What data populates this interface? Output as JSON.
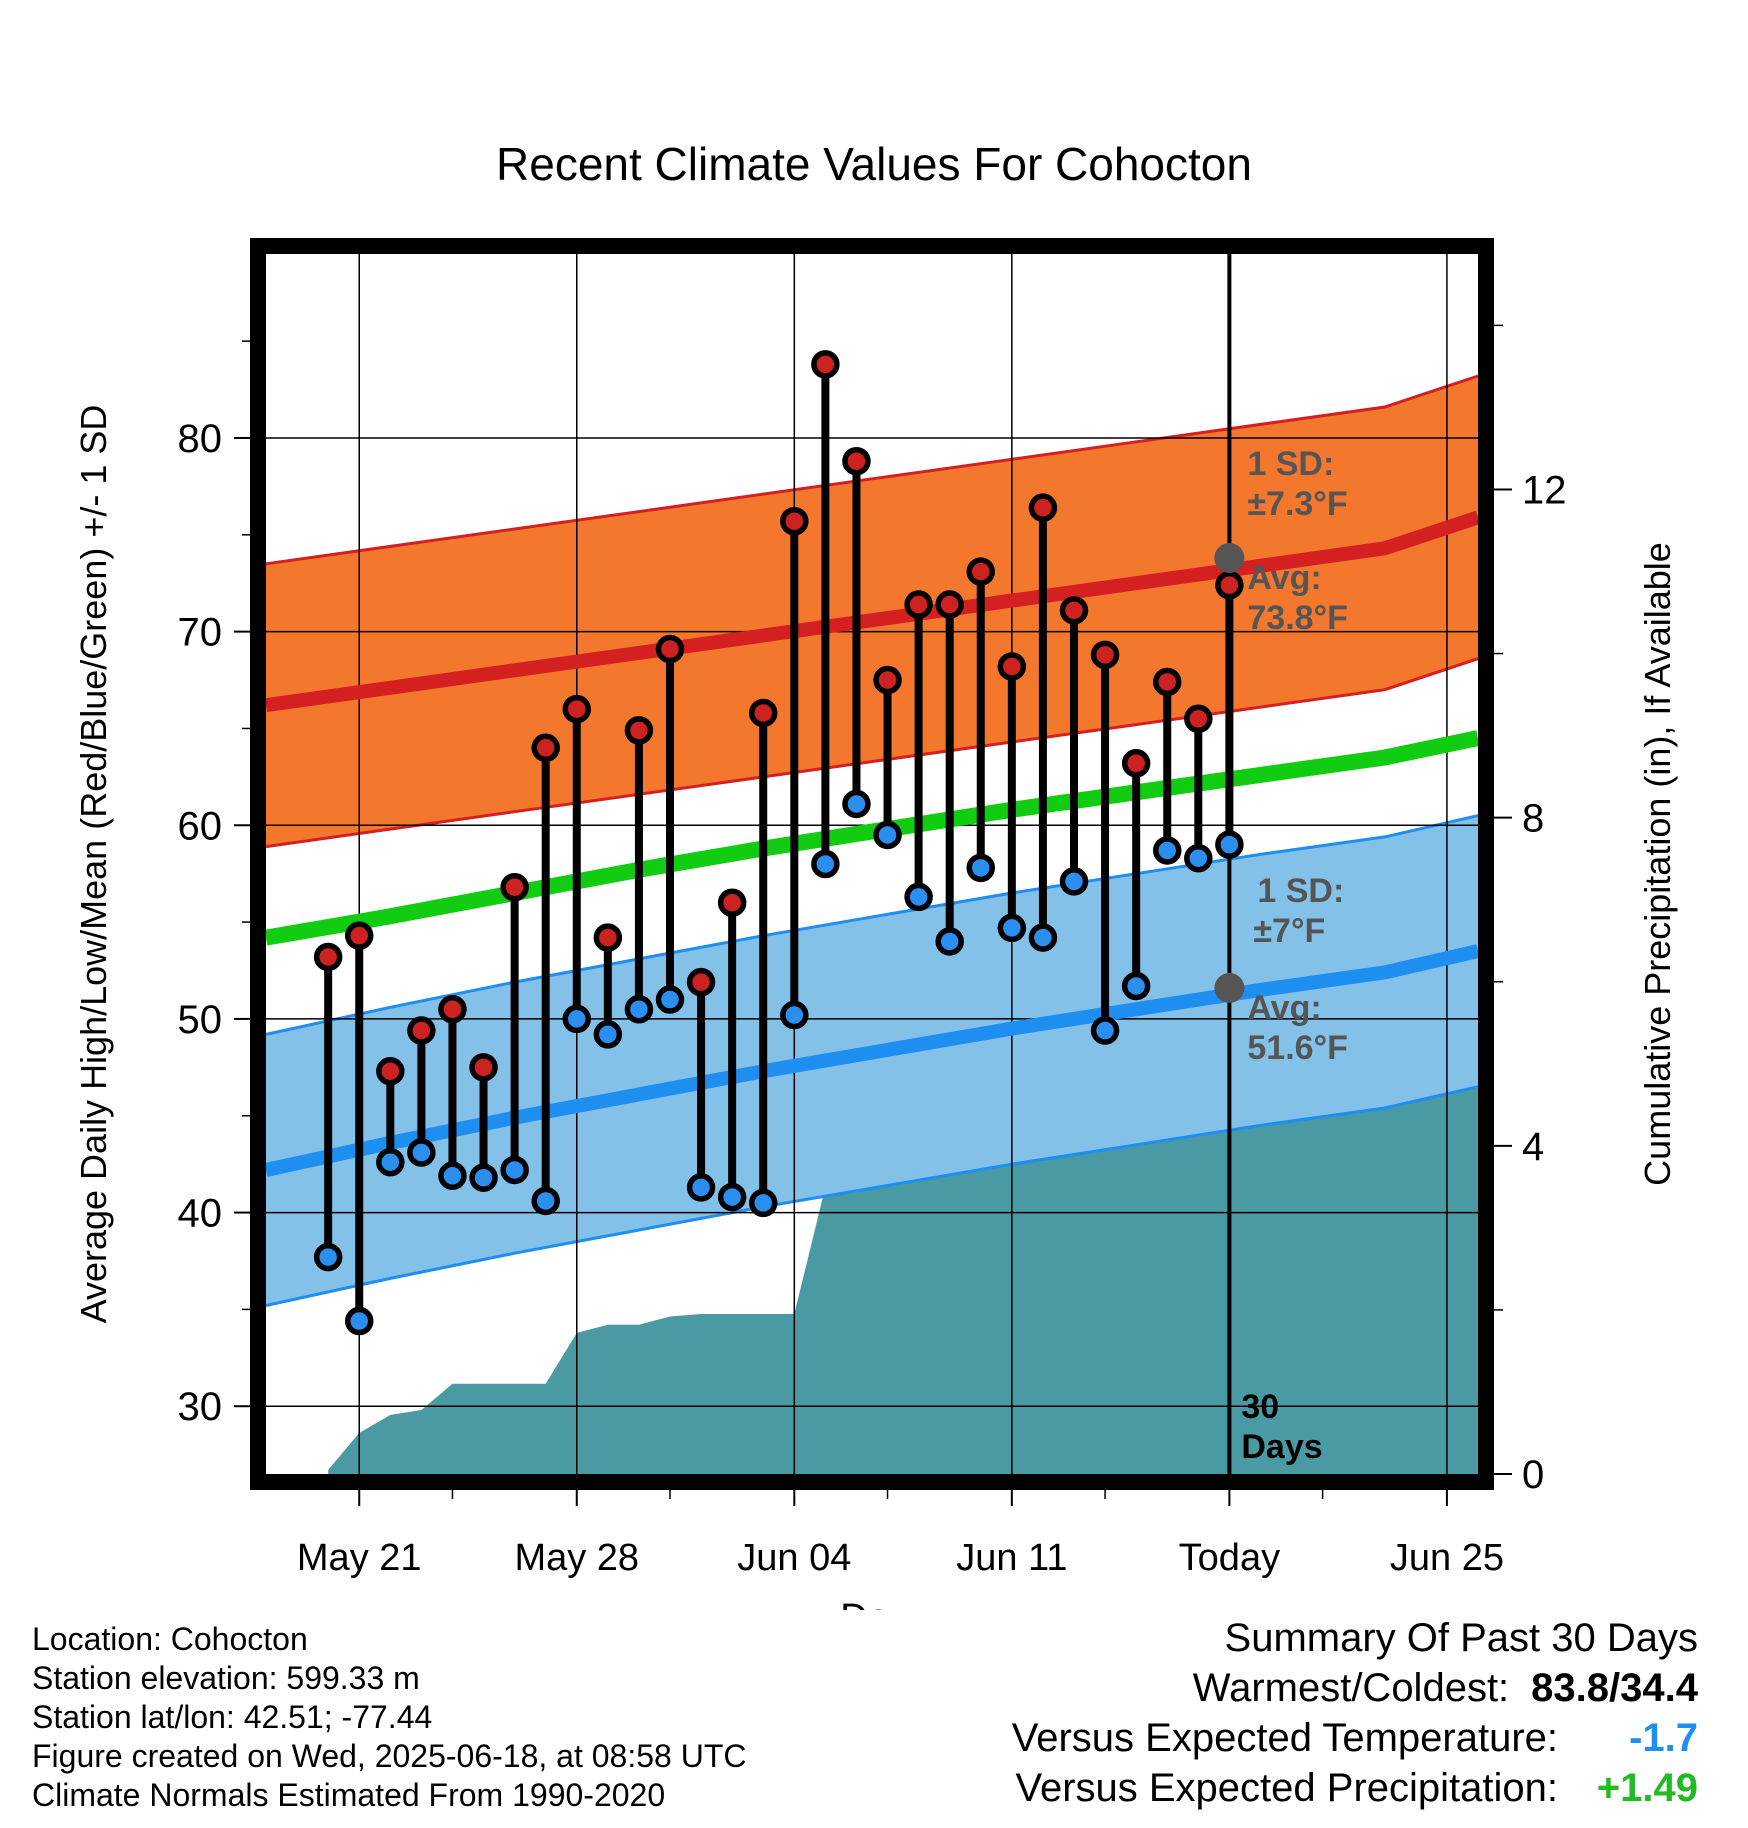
{
  "chart_data": {
    "type": "line",
    "title": "Recent Climate Values For Cohocton",
    "xlabel": "Day",
    "ylabel": "Average Daily High/Low/Mean (Red/Blue/Green) +/- 1 SD",
    "y2label": "Cumulative Precipitation (in), If Available",
    "start_date": "2025-05-18",
    "x_range": [
      "2025-05-18",
      "2025-06-26"
    ],
    "ylim": [
      26.5,
      89.5
    ],
    "y2lim": [
      0,
      14.87
    ],
    "y_ticks": [
      30,
      40,
      50,
      60,
      70,
      80
    ],
    "y2_ticks": [
      0,
      4,
      8,
      12
    ],
    "x_ticks": [
      {
        "date": "2025-05-21",
        "label": "May 21"
      },
      {
        "date": "2025-05-28",
        "label": "May 28"
      },
      {
        "date": "2025-06-04",
        "label": "Jun 04"
      },
      {
        "date": "2025-06-11",
        "label": "Jun 11"
      },
      {
        "date": "2025-06-18",
        "label": "Today"
      },
      {
        "date": "2025-06-25",
        "label": "Jun 25"
      }
    ],
    "grid": true,
    "colors": {
      "high_band": "#f4772e",
      "high_line": "#d42020",
      "low_band": "#84c1e8",
      "low_line": "#1e8ef0",
      "mean_line": "#11cc11",
      "precip_fill": "#4a9aa3",
      "high_marker": "#cc2222",
      "low_marker": "#2b8ff0",
      "annotation": "#555555",
      "versus_temp": "#1e8ef0",
      "versus_precip": "#22bb22"
    },
    "normals": {
      "dates": [
        "2025-05-18",
        "2025-05-22",
        "2025-05-26",
        "2025-05-30",
        "2025-06-03",
        "2025-06-07",
        "2025-06-11",
        "2025-06-15",
        "2025-06-19",
        "2025-06-23",
        "2025-06-26"
      ],
      "high_mean": [
        66.2,
        67.1,
        68.0,
        68.9,
        69.8,
        70.7,
        71.6,
        72.5,
        73.4,
        74.3,
        75.9
      ],
      "high_sd": 7.3,
      "low_mean": [
        42.2,
        43.6,
        44.9,
        46.1,
        47.3,
        48.4,
        49.5,
        50.5,
        51.5,
        52.4,
        53.5
      ],
      "low_sd": 7.0,
      "mean": [
        54.2,
        55.3,
        56.5,
        57.7,
        58.8,
        59.8,
        60.8,
        61.7,
        62.6,
        63.5,
        64.5
      ]
    },
    "today": {
      "date": "2025-06-18",
      "high_avg": 73.8,
      "low_avg": 51.6,
      "high_sd_label": "1 SD:",
      "high_sd_value": "±7.3°F",
      "high_avg_label": "Avg:",
      "high_avg_value": "73.8°F",
      "low_sd_label": "1 SD:",
      "low_sd_value": "±7°F",
      "low_avg_label": "Avg:",
      "low_avg_value": "51.6°F",
      "days_label_line1": "30",
      "days_label_line2": "Days"
    },
    "series": [
      {
        "name": "High",
        "dates": [
          "2025-05-20",
          "2025-05-21",
          "2025-05-22",
          "2025-05-23",
          "2025-05-24",
          "2025-05-25",
          "2025-05-26",
          "2025-05-27",
          "2025-05-28",
          "2025-05-29",
          "2025-05-30",
          "2025-05-31",
          "2025-06-01",
          "2025-06-02",
          "2025-06-03",
          "2025-06-04",
          "2025-06-05",
          "2025-06-06",
          "2025-06-07",
          "2025-06-08",
          "2025-06-09",
          "2025-06-10",
          "2025-06-11",
          "2025-06-12",
          "2025-06-13",
          "2025-06-14",
          "2025-06-15",
          "2025-06-16",
          "2025-06-17",
          "2025-06-18"
        ],
        "values": [
          53.2,
          54.3,
          47.3,
          49.4,
          50.5,
          47.5,
          56.8,
          64.0,
          66.0,
          54.2,
          64.9,
          69.1,
          51.9,
          56.0,
          65.8,
          75.7,
          83.8,
          78.8,
          67.5,
          71.4,
          71.4,
          73.1,
          68.2,
          76.4,
          71.1,
          68.8,
          63.2,
          67.4,
          65.5,
          72.4
        ]
      },
      {
        "name": "Low",
        "dates": [
          "2025-05-20",
          "2025-05-21",
          "2025-05-22",
          "2025-05-23",
          "2025-05-24",
          "2025-05-25",
          "2025-05-26",
          "2025-05-27",
          "2025-05-28",
          "2025-05-29",
          "2025-05-30",
          "2025-05-31",
          "2025-06-01",
          "2025-06-02",
          "2025-06-03",
          "2025-06-04",
          "2025-06-05",
          "2025-06-06",
          "2025-06-07",
          "2025-06-08",
          "2025-06-09",
          "2025-06-10",
          "2025-06-11",
          "2025-06-12",
          "2025-06-13",
          "2025-06-14",
          "2025-06-15",
          "2025-06-16",
          "2025-06-17",
          "2025-06-18"
        ],
        "values": [
          37.7,
          34.4,
          42.6,
          43.1,
          41.9,
          41.8,
          42.2,
          40.6,
          50.0,
          49.2,
          50.5,
          51.0,
          41.3,
          40.8,
          40.5,
          50.2,
          58.0,
          61.1,
          59.5,
          56.3,
          54.0,
          57.8,
          54.7,
          54.2,
          57.1,
          49.4,
          51.7,
          58.7,
          58.3,
          59.0
        ]
      }
    ],
    "precipitation": {
      "dates": [
        "2025-05-18",
        "2025-05-20",
        "2025-05-20",
        "2025-05-21",
        "2025-05-22",
        "2025-05-23",
        "2025-05-24",
        "2025-05-25",
        "2025-05-26",
        "2025-05-27",
        "2025-05-28",
        "2025-05-29",
        "2025-05-30",
        "2025-05-31",
        "2025-06-01",
        "2025-06-02",
        "2025-06-03",
        "2025-06-04",
        "2025-06-05",
        "2025-06-06",
        "2025-06-07",
        "2025-06-08",
        "2025-06-09",
        "2025-06-10",
        "2025-06-11",
        "2025-06-14",
        "2025-06-18",
        "2025-06-26"
      ],
      "values": [
        0,
        0,
        0.05,
        0.5,
        0.72,
        0.78,
        1.1,
        1.1,
        1.1,
        1.1,
        1.72,
        1.82,
        1.82,
        1.92,
        1.95,
        1.95,
        1.95,
        1.95,
        3.5,
        4.2,
        4.8,
        5.25,
        5.5,
        5.5,
        5.5,
        5.52,
        5.52,
        5.52
      ]
    }
  },
  "footer": {
    "location": "Location: Cohocton",
    "elevation": "Station elevation: 599.33 m",
    "latlon": "Station lat/lon: 42.51; -77.44",
    "created": "Figure created on Wed, 2025-06-18, at 08:58 UTC",
    "normals": "Climate Normals Estimated From 1990-2020"
  },
  "summary": {
    "title": "Summary Of Past 30 Days",
    "warmest_coldest_label": "Warmest/Coldest:",
    "warmest_coldest_value": "83.8/34.4",
    "versus_temp_label": "Versus Expected Temperature:",
    "versus_temp_value": "-1.7",
    "versus_precip_label": "Versus Expected Precipitation:",
    "versus_precip_value": "+1.49"
  }
}
